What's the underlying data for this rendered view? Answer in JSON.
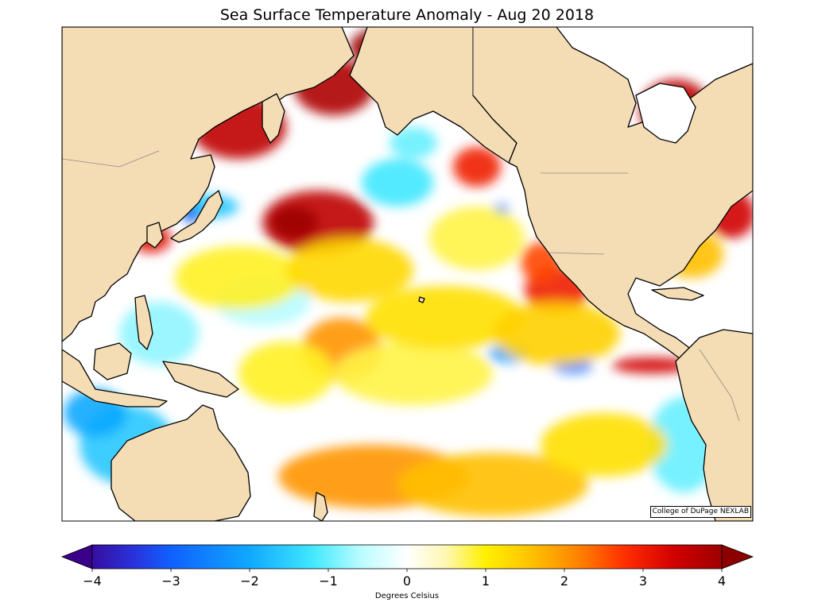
{
  "title": "Sea Surface Temperature Anomaly - Aug 20 2018",
  "credit": "College of DuPage NEXLAB",
  "colorbar": {
    "label": "Degrees Celsius",
    "ticks": [
      "−4",
      "−3",
      "−2",
      "−1",
      "0",
      "1",
      "2",
      "3",
      "4"
    ],
    "min": -4,
    "max": 4,
    "extend": "both"
  },
  "colors": {
    "land": "#f4ddb5",
    "coastline": "#000000",
    "border": "#888888",
    "water": "#ffffff"
  },
  "palette": [
    {
      "v": -4.2,
      "c": "#3a008a"
    },
    {
      "v": -3.5,
      "c": "#2a30d8"
    },
    {
      "v": -3.0,
      "c": "#1060ff"
    },
    {
      "v": -2.0,
      "c": "#10a8ff"
    },
    {
      "v": -1.2,
      "c": "#40e8ff"
    },
    {
      "v": -0.6,
      "c": "#b8fcff"
    },
    {
      "v": 0.0,
      "c": "#ffffff"
    },
    {
      "v": 0.5,
      "c": "#fff7b0"
    },
    {
      "v": 1.0,
      "c": "#fff000"
    },
    {
      "v": 1.6,
      "c": "#ffc000"
    },
    {
      "v": 2.2,
      "c": "#ff8000"
    },
    {
      "v": 2.8,
      "c": "#ff2a00"
    },
    {
      "v": 3.4,
      "c": "#d00000"
    },
    {
      "v": 4.2,
      "c": "#8c0000"
    }
  ]
}
